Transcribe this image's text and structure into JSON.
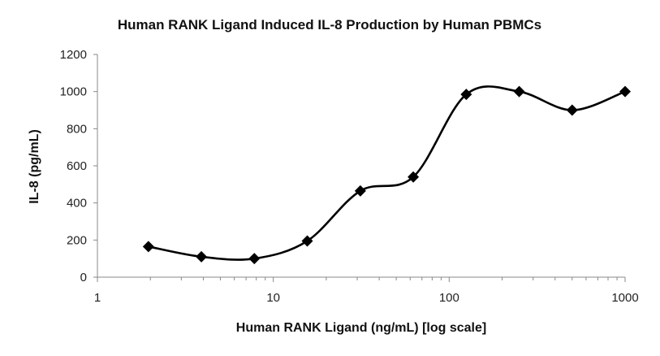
{
  "chart_data": {
    "type": "scatter",
    "title": "Human RANK Ligand Induced IL-8 Production by Human PBMCs",
    "xlabel": "Human RANK Ligand (ng/mL) [log scale]",
    "ylabel": "IL-8 (pg/mL)",
    "x_scale": "log",
    "xlim": [
      1,
      1000
    ],
    "ylim": [
      0,
      1200
    ],
    "x_ticks": [
      1,
      10,
      100,
      1000
    ],
    "y_ticks": [
      0,
      200,
      400,
      600,
      800,
      1000,
      1200
    ],
    "grid": false,
    "smoothed_line": true,
    "marker": "diamond",
    "series": [
      {
        "x": [
          1.95,
          3.9,
          7.8,
          15.6,
          31.25,
          62.5,
          125,
          250,
          500,
          1000
        ],
        "y": [
          165,
          110,
          100,
          195,
          465,
          540,
          985,
          1000,
          900,
          1000
        ]
      }
    ]
  },
  "colors": {
    "line": "#000000",
    "axis": "#888888"
  }
}
